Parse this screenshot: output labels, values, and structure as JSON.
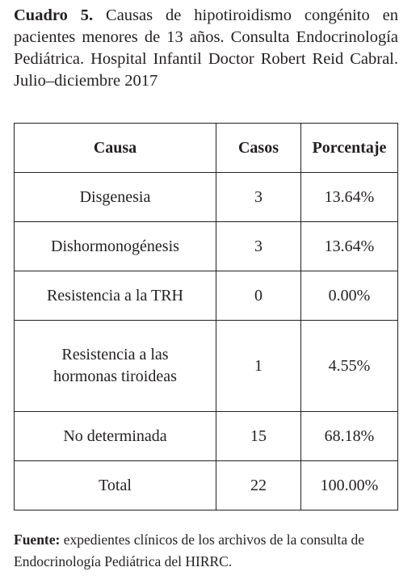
{
  "caption": {
    "label": "Cuadro 5.",
    "text": "Causas de hipotiroidismo congénito en pacientes menores de 13 años. Consulta Endocrinología Pediátrica. Hospital Infantil Doctor Robert Reid Cabral. Julio–diciembre 2017"
  },
  "table": {
    "header": [
      "Causa",
      "Casos",
      "Porcentaje"
    ],
    "rows": [
      [
        "Disgenesia",
        3,
        "13.64%"
      ],
      [
        "Dishormonogénesis",
        3,
        "13.64%"
      ],
      [
        "Resistencia a la TRH",
        0,
        "0.00%"
      ],
      [
        "Resistencia a las hormonas tiroideas",
        1,
        "4.55%"
      ],
      [
        "No determinada",
        15,
        "68.18%"
      ],
      [
        "Total",
        22,
        "100.00%"
      ]
    ]
  },
  "source": {
    "label": "Fuente:",
    "text": "expedientes clínicos de los archivos de la consulta de Endocrinología Pediátrica del HIRRC."
  }
}
